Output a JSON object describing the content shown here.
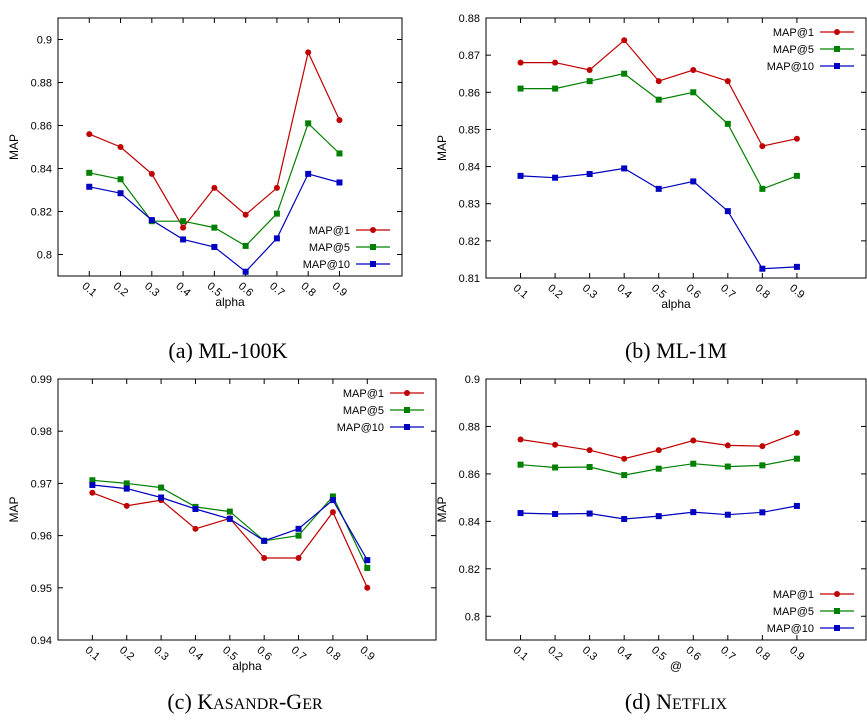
{
  "captions": [
    {
      "parts": [
        {
          "t": "(a) ML-100K",
          "sc": false
        }
      ]
    },
    {
      "parts": [
        {
          "t": "(b) ML-1M",
          "sc": false
        }
      ]
    },
    {
      "parts": [
        {
          "t": "(c) K",
          "sc": false
        },
        {
          "t": "ASANDR",
          "sc": true
        },
        {
          "t": "-G",
          "sc": false
        },
        {
          "t": "ER",
          "sc": true
        }
      ]
    },
    {
      "parts": [
        {
          "t": "(d) N",
          "sc": false
        },
        {
          "t": "ETFLIX",
          "sc": true
        }
      ]
    }
  ],
  "colors": {
    "MAP@1": "#c00000",
    "MAP@5": "#008000",
    "MAP@10": "#0000c0"
  },
  "chart_data": [
    {
      "type": "line",
      "xlabel": "alpha",
      "ylabel": "MAP",
      "categories": [
        "0.1",
        "0.2",
        "0.3",
        "0.4",
        "0.5",
        "0.6",
        "0.7",
        "0.8",
        "0.9"
      ],
      "ylim": [
        0.79,
        0.91
      ],
      "yticks": [
        "0.8",
        "0.82",
        "0.84",
        "0.86",
        "0.88",
        "0.9"
      ],
      "legend_position": "bottom-right",
      "series": [
        {
          "name": "MAP@1",
          "marker": "circle",
          "values": [
            0.856,
            0.85,
            0.8375,
            0.8125,
            0.831,
            0.8185,
            0.831,
            0.894,
            0.8625
          ]
        },
        {
          "name": "MAP@5",
          "marker": "square",
          "values": [
            0.838,
            0.835,
            0.8155,
            0.8155,
            0.8125,
            0.804,
            0.819,
            0.861,
            0.847
          ]
        },
        {
          "name": "MAP@10",
          "marker": "square",
          "values": [
            0.8315,
            0.8285,
            0.816,
            0.807,
            0.8035,
            0.792,
            0.8075,
            0.8375,
            0.8335
          ]
        }
      ]
    },
    {
      "type": "line",
      "xlabel": "alpha",
      "ylabel": "MAP",
      "categories": [
        "0.1",
        "0.2",
        "0.3",
        "0.4",
        "0.5",
        "0.6",
        "0.7",
        "0.8",
        "0.9"
      ],
      "ylim": [
        0.81,
        0.88
      ],
      "yticks": [
        "0.81",
        "0.82",
        "0.83",
        "0.84",
        "0.85",
        "0.86",
        "0.87",
        "0.88"
      ],
      "legend_position": "top-right",
      "series": [
        {
          "name": "MAP@1",
          "marker": "circle",
          "values": [
            0.868,
            0.868,
            0.866,
            0.874,
            0.863,
            0.866,
            0.863,
            0.8455,
            0.8475
          ]
        },
        {
          "name": "MAP@5",
          "marker": "square",
          "values": [
            0.861,
            0.861,
            0.863,
            0.865,
            0.858,
            0.86,
            0.8515,
            0.834,
            0.8375
          ]
        },
        {
          "name": "MAP@10",
          "marker": "square",
          "values": [
            0.8375,
            0.837,
            0.838,
            0.8395,
            0.834,
            0.836,
            0.828,
            0.8125,
            0.813
          ]
        }
      ]
    },
    {
      "type": "line",
      "xlabel": "alpha",
      "ylabel": "MAP",
      "categories": [
        "0.1",
        "0.2",
        "0.3",
        "0.4",
        "0.5",
        "0.6",
        "0.7",
        "0.8",
        "0.9"
      ],
      "ylim": [
        0.94,
        0.99
      ],
      "yticks": [
        "0.94",
        "0.95",
        "0.96",
        "0.97",
        "0.98",
        "0.99"
      ],
      "legend_position": "top-right",
      "series": [
        {
          "name": "MAP@1",
          "marker": "circle",
          "values": [
            0.9682,
            0.9657,
            0.9668,
            0.9613,
            0.9633,
            0.9557,
            0.9557,
            0.9645,
            0.95
          ]
        },
        {
          "name": "MAP@5",
          "marker": "square",
          "values": [
            0.9706,
            0.97,
            0.9692,
            0.9655,
            0.9646,
            0.959,
            0.96,
            0.9675,
            0.9538
          ]
        },
        {
          "name": "MAP@10",
          "marker": "square",
          "values": [
            0.9697,
            0.969,
            0.9673,
            0.9651,
            0.9632,
            0.959,
            0.9613,
            0.9668,
            0.9553
          ]
        }
      ]
    },
    {
      "type": "line",
      "xlabel": "@",
      "ylabel": "MAP",
      "categories": [
        "0.1",
        "0.2",
        "0.3",
        "0.4",
        "0.5",
        "0.6",
        "0.7",
        "0.8",
        "0.9"
      ],
      "ylim": [
        0.79,
        0.9
      ],
      "yticks": [
        "0.8",
        "0.82",
        "0.84",
        "0.86",
        "0.88",
        "0.9"
      ],
      "legend_position": "bottom-right",
      "series": [
        {
          "name": "MAP@1",
          "marker": "circle",
          "values": [
            0.8745,
            0.8723,
            0.87,
            0.8664,
            0.87,
            0.8741,
            0.872,
            0.8717,
            0.8773
          ]
        },
        {
          "name": "MAP@5",
          "marker": "square",
          "values": [
            0.8639,
            0.8627,
            0.8629,
            0.8595,
            0.8622,
            0.8643,
            0.8631,
            0.8636,
            0.8664
          ]
        },
        {
          "name": "MAP@10",
          "marker": "square",
          "values": [
            0.8435,
            0.8431,
            0.8433,
            0.841,
            0.8422,
            0.8439,
            0.8428,
            0.8438,
            0.8465
          ]
        }
      ]
    }
  ]
}
